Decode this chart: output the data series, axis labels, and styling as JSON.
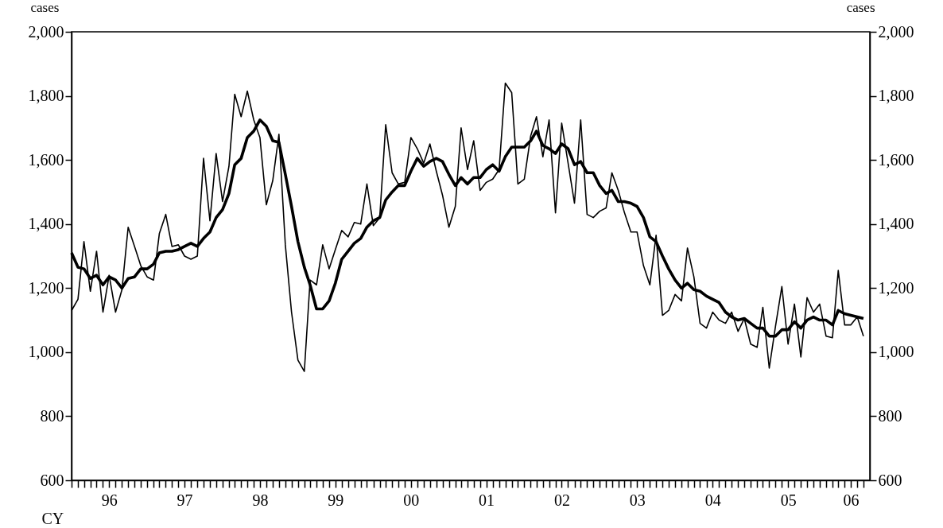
{
  "chart_data": {
    "type": "line",
    "xlabel": "CY",
    "ylabel": "cases",
    "y2label": "cases",
    "x": [
      "1996-01",
      "1996-02",
      "1996-03",
      "1996-04",
      "1996-05",
      "1996-06",
      "1996-07",
      "1996-08",
      "1996-09",
      "1996-10",
      "1996-11",
      "1996-12",
      "1997-01",
      "1997-02",
      "1997-03",
      "1997-04",
      "1997-05",
      "1997-06",
      "1997-07",
      "1997-08",
      "1997-09",
      "1997-10",
      "1997-11",
      "1997-12",
      "1998-01",
      "1998-02",
      "1998-03",
      "1998-04",
      "1998-05",
      "1998-06",
      "1998-07",
      "1998-08",
      "1998-09",
      "1998-10",
      "1998-11",
      "1998-12",
      "1999-01",
      "1999-02",
      "1999-03",
      "1999-04",
      "1999-05",
      "1999-06",
      "1999-07",
      "1999-08",
      "1999-09",
      "1999-10",
      "1999-11",
      "1999-12",
      "2000-01",
      "2000-02",
      "2000-03",
      "2000-04",
      "2000-05",
      "2000-06",
      "2000-07",
      "2000-08",
      "2000-09",
      "2000-10",
      "2000-11",
      "2000-12",
      "2001-01",
      "2001-02",
      "2001-03",
      "2001-04",
      "2001-05",
      "2001-06",
      "2001-07",
      "2001-08",
      "2001-09",
      "2001-10",
      "2001-11",
      "2001-12",
      "2002-01",
      "2002-02",
      "2002-03",
      "2002-04",
      "2002-05",
      "2002-06",
      "2002-07",
      "2002-08",
      "2002-09",
      "2002-10",
      "2002-11",
      "2002-12",
      "2003-01",
      "2003-02",
      "2003-03",
      "2003-04",
      "2003-05",
      "2003-06",
      "2003-07",
      "2003-08",
      "2003-09",
      "2003-10",
      "2003-11",
      "2003-12",
      "2004-01",
      "2004-02",
      "2004-03",
      "2004-04",
      "2004-05",
      "2004-06",
      "2004-07",
      "2004-08",
      "2004-09",
      "2004-10",
      "2004-11",
      "2004-12",
      "2005-01",
      "2005-02",
      "2005-03",
      "2005-04",
      "2005-05",
      "2005-06",
      "2005-07",
      "2005-08",
      "2005-09",
      "2005-10",
      "2005-11",
      "2005-12",
      "2006-01",
      "2006-02",
      "2006-03",
      "2006-04",
      "2006-05",
      "2006-06",
      "2006-07"
    ],
    "series": [
      {
        "color": "#000000",
        "values": [
          1130,
          1165,
          1345,
          1190,
          1315,
          1125,
          1240,
          1125,
          1195,
          1390,
          1330,
          1270,
          1235,
          1225,
          1370,
          1430,
          1330,
          1335,
          1300,
          1290,
          1300,
          1605,
          1410,
          1620,
          1470,
          1580,
          1805,
          1735,
          1815,
          1725,
          1670,
          1460,
          1535,
          1680,
          1335,
          1125,
          975,
          940,
          1225,
          1210,
          1335,
          1260,
          1320,
          1380,
          1360,
          1405,
          1400,
          1525,
          1395,
          1420,
          1710,
          1560,
          1525,
          1530,
          1670,
          1635,
          1590,
          1650,
          1565,
          1490,
          1390,
          1455,
          1700,
          1570,
          1660,
          1505,
          1530,
          1540,
          1570,
          1840,
          1810,
          1525,
          1540,
          1675,
          1735,
          1610,
          1725,
          1435,
          1715,
          1590,
          1465,
          1725,
          1430,
          1420,
          1440,
          1450,
          1560,
          1505,
          1435,
          1375,
          1375,
          1270,
          1210,
          1365,
          1115,
          1130,
          1180,
          1160,
          1325,
          1235,
          1090,
          1075,
          1125,
          1100,
          1090,
          1125,
          1065,
          1105,
          1025,
          1015,
          1140,
          950,
          1080,
          1205,
          1025,
          1150,
          985,
          1170,
          1125,
          1150,
          1050,
          1045,
          1255,
          1085,
          1085,
          1110,
          1050
        ]
      },
      {
        "color": "#000000",
        "values": [
          1310,
          1265,
          1260,
          1230,
          1240,
          1210,
          1235,
          1225,
          1200,
          1230,
          1235,
          1260,
          1260,
          1275,
          1310,
          1315,
          1315,
          1320,
          1330,
          1340,
          1330,
          1355,
          1375,
          1420,
          1445,
          1495,
          1585,
          1605,
          1670,
          1690,
          1725,
          1705,
          1660,
          1655,
          1555,
          1455,
          1345,
          1265,
          1210,
          1135,
          1135,
          1160,
          1215,
          1290,
          1315,
          1340,
          1355,
          1390,
          1410,
          1420,
          1475,
          1500,
          1520,
          1520,
          1565,
          1605,
          1580,
          1595,
          1605,
          1595,
          1555,
          1520,
          1545,
          1525,
          1545,
          1545,
          1570,
          1585,
          1565,
          1610,
          1640,
          1640,
          1640,
          1660,
          1690,
          1645,
          1635,
          1620,
          1650,
          1635,
          1585,
          1595,
          1560,
          1560,
          1520,
          1495,
          1505,
          1470,
          1470,
          1465,
          1455,
          1420,
          1360,
          1345,
          1300,
          1260,
          1225,
          1200,
          1215,
          1195,
          1190,
          1175,
          1165,
          1155,
          1125,
          1110,
          1100,
          1105,
          1090,
          1075,
          1075,
          1050,
          1050,
          1070,
          1070,
          1095,
          1075,
          1100,
          1110,
          1100,
          1100,
          1085,
          1130,
          1120,
          1115,
          1110,
          1105
        ]
      }
    ],
    "xlim": [
      "1996-01",
      "2006-08"
    ],
    "xticks": [
      {
        "value": "1996-01",
        "label": null
      },
      {
        "value": "1996-02",
        "label": null
      },
      {
        "value": "1996-03",
        "label": null
      },
      {
        "value": "1996-04",
        "label": null
      },
      {
        "value": "1996-05",
        "label": null
      },
      {
        "value": "1996-06",
        "label": null
      },
      {
        "value": "1996-07",
        "label": "96"
      },
      {
        "value": "1996-08",
        "label": null
      },
      {
        "value": "1996-09",
        "label": null
      },
      {
        "value": "1996-10",
        "label": null
      },
      {
        "value": "1996-11",
        "label": null
      },
      {
        "value": "1996-12",
        "label": null
      },
      {
        "value": "1997-01",
        "label": null
      },
      {
        "value": "1997-02",
        "label": null
      },
      {
        "value": "1997-03",
        "label": null
      },
      {
        "value": "1997-04",
        "label": null
      },
      {
        "value": "1997-05",
        "label": null
      },
      {
        "value": "1997-06",
        "label": null
      },
      {
        "value": "1997-07",
        "label": "97"
      },
      {
        "value": "1997-08",
        "label": null
      },
      {
        "value": "1997-09",
        "label": null
      },
      {
        "value": "1997-10",
        "label": null
      },
      {
        "value": "1997-11",
        "label": null
      },
      {
        "value": "1997-12",
        "label": null
      },
      {
        "value": "1998-01",
        "label": null
      },
      {
        "value": "1998-02",
        "label": null
      },
      {
        "value": "1998-03",
        "label": null
      },
      {
        "value": "1998-04",
        "label": null
      },
      {
        "value": "1998-05",
        "label": null
      },
      {
        "value": "1998-06",
        "label": null
      },
      {
        "value": "1998-07",
        "label": "98"
      },
      {
        "value": "1998-08",
        "label": null
      },
      {
        "value": "1998-09",
        "label": null
      },
      {
        "value": "1998-10",
        "label": null
      },
      {
        "value": "1998-11",
        "label": null
      },
      {
        "value": "1998-12",
        "label": null
      },
      {
        "value": "1999-01",
        "label": null
      },
      {
        "value": "1999-02",
        "label": null
      },
      {
        "value": "1999-03",
        "label": null
      },
      {
        "value": "1999-04",
        "label": null
      },
      {
        "value": "1999-05",
        "label": null
      },
      {
        "value": "1999-06",
        "label": null
      },
      {
        "value": "1999-07",
        "label": "99"
      },
      {
        "value": "1999-08",
        "label": null
      },
      {
        "value": "1999-09",
        "label": null
      },
      {
        "value": "1999-10",
        "label": null
      },
      {
        "value": "1999-11",
        "label": null
      },
      {
        "value": "1999-12",
        "label": null
      },
      {
        "value": "2000-01",
        "label": null
      },
      {
        "value": "2000-02",
        "label": null
      },
      {
        "value": "2000-03",
        "label": null
      },
      {
        "value": "2000-04",
        "label": null
      },
      {
        "value": "2000-05",
        "label": null
      },
      {
        "value": "2000-06",
        "label": null
      },
      {
        "value": "2000-07",
        "label": "00"
      },
      {
        "value": "2000-08",
        "label": null
      },
      {
        "value": "2000-09",
        "label": null
      },
      {
        "value": "2000-10",
        "label": null
      },
      {
        "value": "2000-11",
        "label": null
      },
      {
        "value": "2000-12",
        "label": null
      },
      {
        "value": "2001-01",
        "label": null
      },
      {
        "value": "2001-02",
        "label": null
      },
      {
        "value": "2001-03",
        "label": null
      },
      {
        "value": "2001-04",
        "label": null
      },
      {
        "value": "2001-05",
        "label": null
      },
      {
        "value": "2001-06",
        "label": null
      },
      {
        "value": "2001-07",
        "label": "01"
      },
      {
        "value": "2001-08",
        "label": null
      },
      {
        "value": "2001-09",
        "label": null
      },
      {
        "value": "2001-10",
        "label": null
      },
      {
        "value": "2001-11",
        "label": null
      },
      {
        "value": "2001-12",
        "label": null
      },
      {
        "value": "2002-01",
        "label": null
      },
      {
        "value": "2002-02",
        "label": null
      },
      {
        "value": "2002-03",
        "label": null
      },
      {
        "value": "2002-04",
        "label": null
      },
      {
        "value": "2002-05",
        "label": null
      },
      {
        "value": "2002-06",
        "label": null
      },
      {
        "value": "2002-07",
        "label": "02"
      },
      {
        "value": "2002-08",
        "label": null
      },
      {
        "value": "2002-09",
        "label": null
      },
      {
        "value": "2002-10",
        "label": null
      },
      {
        "value": "2002-11",
        "label": null
      },
      {
        "value": "2002-12",
        "label": null
      },
      {
        "value": "2003-01",
        "label": null
      },
      {
        "value": "2003-02",
        "label": null
      },
      {
        "value": "2003-03",
        "label": null
      },
      {
        "value": "2003-04",
        "label": null
      },
      {
        "value": "2003-05",
        "label": null
      },
      {
        "value": "2003-06",
        "label": null
      },
      {
        "value": "2003-07",
        "label": "03"
      },
      {
        "value": "2003-08",
        "label": null
      },
      {
        "value": "2003-09",
        "label": null
      },
      {
        "value": "2003-10",
        "label": null
      },
      {
        "value": "2003-11",
        "label": null
      },
      {
        "value": "2003-12",
        "label": null
      },
      {
        "value": "2004-01",
        "label": null
      },
      {
        "value": "2004-02",
        "label": null
      },
      {
        "value": "2004-03",
        "label": null
      },
      {
        "value": "2004-04",
        "label": null
      },
      {
        "value": "2004-05",
        "label": null
      },
      {
        "value": "2004-06",
        "label": null
      },
      {
        "value": "2004-07",
        "label": "04"
      },
      {
        "value": "2004-08",
        "label": null
      },
      {
        "value": "2004-09",
        "label": null
      },
      {
        "value": "2004-10",
        "label": null
      },
      {
        "value": "2004-11",
        "label": null
      },
      {
        "value": "2004-12",
        "label": null
      },
      {
        "value": "2005-01",
        "label": null
      },
      {
        "value": "2005-02",
        "label": null
      },
      {
        "value": "2005-03",
        "label": null
      },
      {
        "value": "2005-04",
        "label": null
      },
      {
        "value": "2005-05",
        "label": null
      },
      {
        "value": "2005-06",
        "label": null
      },
      {
        "value": "2005-07",
        "label": "05"
      },
      {
        "value": "2005-08",
        "label": null
      },
      {
        "value": "2005-09",
        "label": null
      },
      {
        "value": "2005-10",
        "label": null
      },
      {
        "value": "2005-11",
        "label": null
      },
      {
        "value": "2005-12",
        "label": null
      },
      {
        "value": "2006-01",
        "label": null
      },
      {
        "value": "2006-02",
        "label": null
      },
      {
        "value": "2006-03",
        "label": null
      },
      {
        "value": "2006-04",
        "label": null
      },
      {
        "value": "2006-05",
        "label": "06"
      },
      {
        "value": "2006-06",
        "label": null
      },
      {
        "value": "2006-07",
        "label": null
      }
    ],
    "ylim": [
      600,
      2000
    ],
    "yticks": [
      {
        "value": 600,
        "label": "600"
      },
      {
        "value": 800,
        "label": "800"
      },
      {
        "value": 1000,
        "label": "1,000"
      },
      {
        "value": 1200,
        "label": "1,200"
      },
      {
        "value": 1400,
        "label": "1,400"
      },
      {
        "value": 1600,
        "label": "1,600"
      },
      {
        "value": 1800,
        "label": "1,800"
      },
      {
        "value": 2000,
        "label": "2,000"
      }
    ],
    "y2lim": [
      600,
      2000
    ],
    "y2ticks": [
      {
        "value": 600,
        "label": "600"
      },
      {
        "value": 800,
        "label": "800"
      },
      {
        "value": 1000,
        "label": "1,000"
      },
      {
        "value": 1200,
        "label": "1,200"
      },
      {
        "value": 1400,
        "label": "1,400"
      },
      {
        "value": 1600,
        "label": "1,600"
      },
      {
        "value": 1800,
        "label": "1,800"
      },
      {
        "value": 2000,
        "label": "2,000"
      }
    ],
    "grid": false,
    "marker": "none",
    "line_style": "solid"
  }
}
